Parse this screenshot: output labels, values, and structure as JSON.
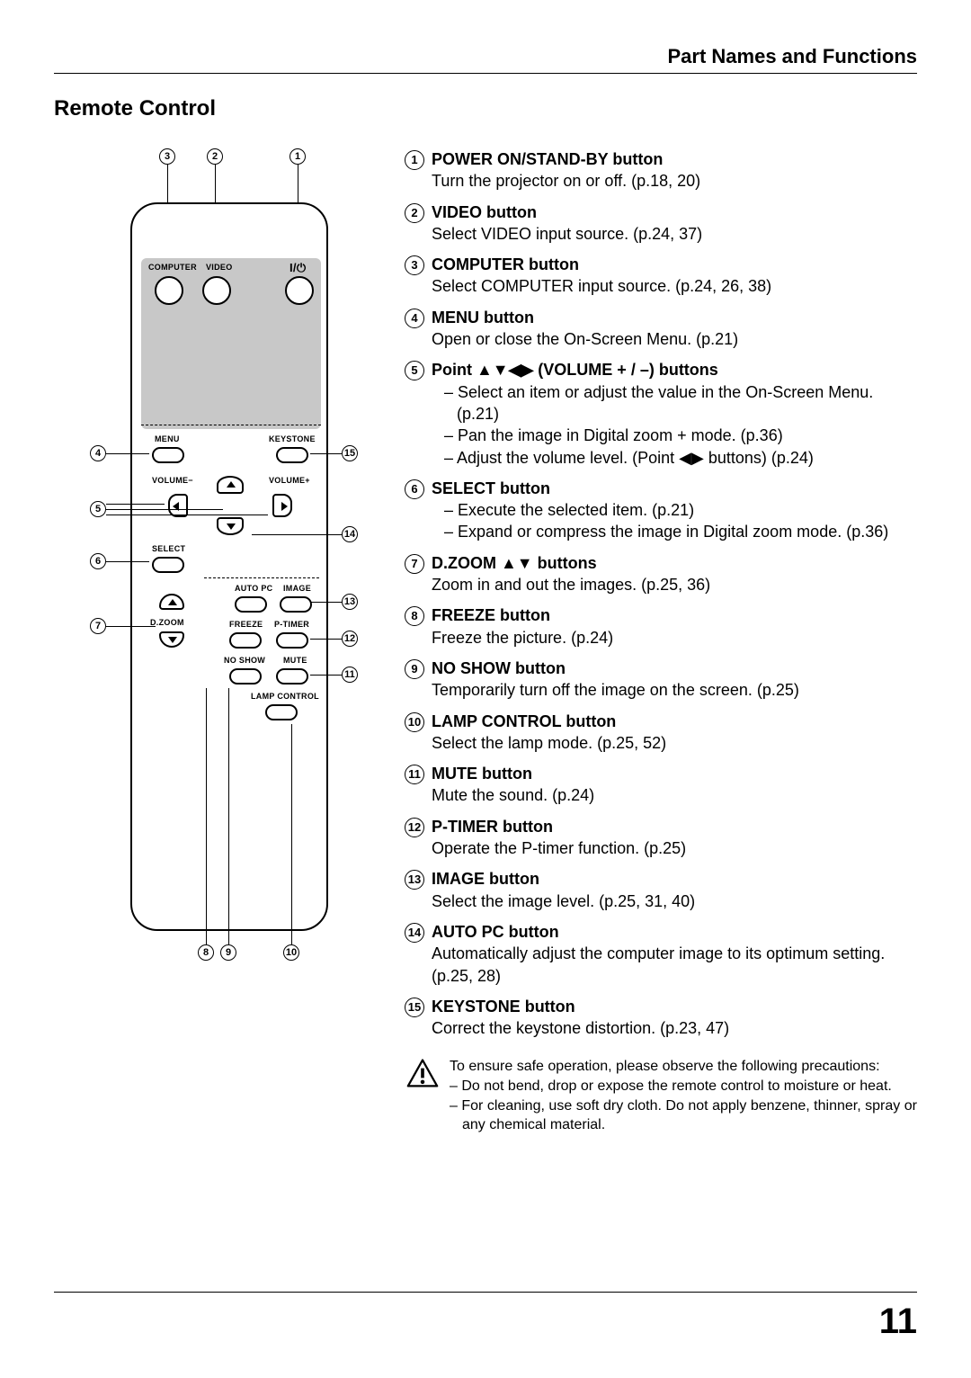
{
  "header": {
    "section": "Part Names and Functions"
  },
  "title": "Remote Control",
  "page_number": "11",
  "remote_labels": {
    "computer": "COMPUTER",
    "video": "VIDEO",
    "power": "I/⏼",
    "menu": "MENU",
    "keystone": "KEYSTONE",
    "vol_minus": "VOLUME−",
    "vol_plus": "VOLUME+",
    "select": "SELECT",
    "dzoom": "D.ZOOM",
    "autopc": "AUTO PC",
    "image": "IMAGE",
    "freeze": "FREEZE",
    "ptimer": "P-TIMER",
    "noshow": "NO SHOW",
    "mute": "MUTE",
    "lamp": "LAMP CONTROL"
  },
  "items": [
    {
      "n": "1",
      "title": "POWER ON/STAND-BY button",
      "desc": "Turn the projector on or off. (p.18, 20)"
    },
    {
      "n": "2",
      "title": "VIDEO button",
      "desc": "Select VIDEO input source. (p.24, 37)"
    },
    {
      "n": "3",
      "title": "COMPUTER button",
      "desc": "Select COMPUTER input source. (p.24, 26, 38)"
    },
    {
      "n": "4",
      "title": "MENU button",
      "desc": "Open or close the On-Screen Menu. (p.21)"
    },
    {
      "n": "5",
      "title": "Point  ▲▼◀▶   (VOLUME + / –) buttons",
      "subs": [
        "– Select an item or adjust the value in the On-Screen Menu. (p.21)",
        "– Pan the image in Digital zoom + mode. (p.36)",
        "– Adjust the volume level. (Point ◀▶ buttons) (p.24)"
      ]
    },
    {
      "n": "6",
      "title": "SELECT button",
      "subs": [
        "– Execute the selected item. (p.21)",
        "– Expand or compress the image in Digital zoom mode. (p.36)"
      ]
    },
    {
      "n": "7",
      "title": "D.ZOOM ▲▼ buttons",
      "desc": "Zoom in and out the images. (p.25, 36)"
    },
    {
      "n": "8",
      "title": "FREEZE button",
      "desc": "Freeze the picture. (p.24)"
    },
    {
      "n": "9",
      "title": "NO SHOW button",
      "desc": "Temporarily turn off the image on the screen. (p.25)"
    },
    {
      "n": "10",
      "title": "LAMP CONTROL button",
      "desc": "Select the lamp mode. (p.25, 52)"
    },
    {
      "n": "11",
      "title": "MUTE button",
      "desc": "Mute the sound. (p.24)"
    },
    {
      "n": "12",
      "title": "P-TIMER button",
      "desc": "Operate the P-timer function. (p.25)"
    },
    {
      "n": "13",
      "title": "IMAGE button",
      "desc": "Select the image level. (p.25, 31, 40)"
    },
    {
      "n": "14",
      "title": "AUTO PC button",
      "desc": "Automatically adjust the computer image to its optimum setting. (p.25, 28)"
    },
    {
      "n": "15",
      "title": "KEYSTONE button",
      "desc": "Correct the keystone distortion. (p.23, 47)"
    }
  ],
  "caution": {
    "intro": "To ensure safe operation, please observe the following precautions:",
    "subs": [
      "– Do not bend, drop or expose the remote control to moisture or heat.",
      "– For cleaning, use soft dry cloth. Do not apply benzene, thinner, spray or any chemical material."
    ]
  }
}
